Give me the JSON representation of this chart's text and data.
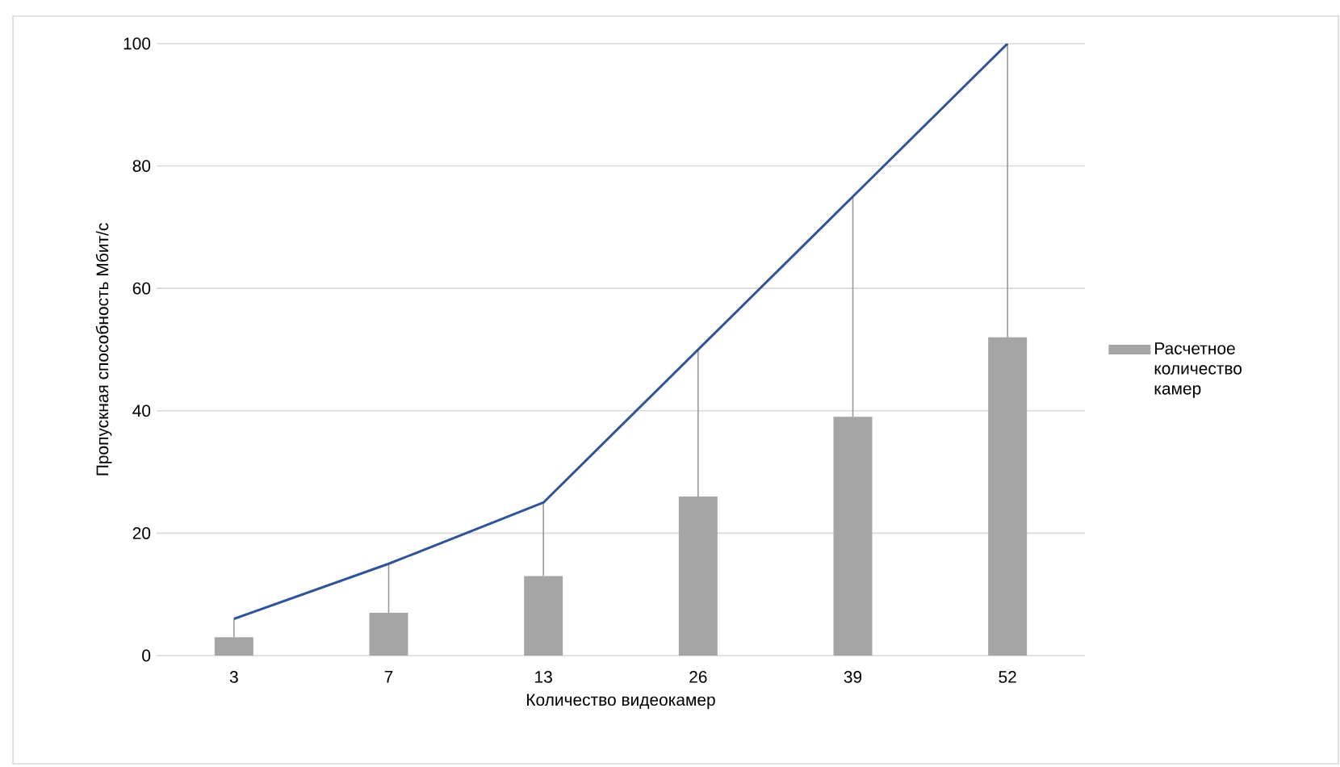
{
  "chart_data": {
    "type": "bar",
    "xlabel": "Количество видеокамер",
    "ylabel": "Пропускная способность Мбит/с",
    "categories": [
      "3",
      "7",
      "13",
      "26",
      "39",
      "52"
    ],
    "series": [
      {
        "name": "Расчетное количество камер",
        "color": "#a5a5a5",
        "values": [
          3,
          7,
          13,
          26,
          39,
          52
        ],
        "errors": [
          [
            3,
            6
          ],
          [
            7,
            15
          ],
          [
            13,
            25
          ],
          [
            26,
            50
          ],
          [
            39,
            75
          ],
          [
            52,
            100
          ]
        ]
      },
      {
        "type": "line",
        "color": "#2f5597",
        "values": [
          6,
          15,
          25,
          50,
          75,
          100
        ]
      }
    ],
    "ylim": [
      0,
      100
    ],
    "yticks": [
      0,
      20,
      40,
      60,
      80,
      100
    ],
    "grid": "y",
    "legend": "right",
    "marker": "none",
    "line_style": "solid"
  }
}
